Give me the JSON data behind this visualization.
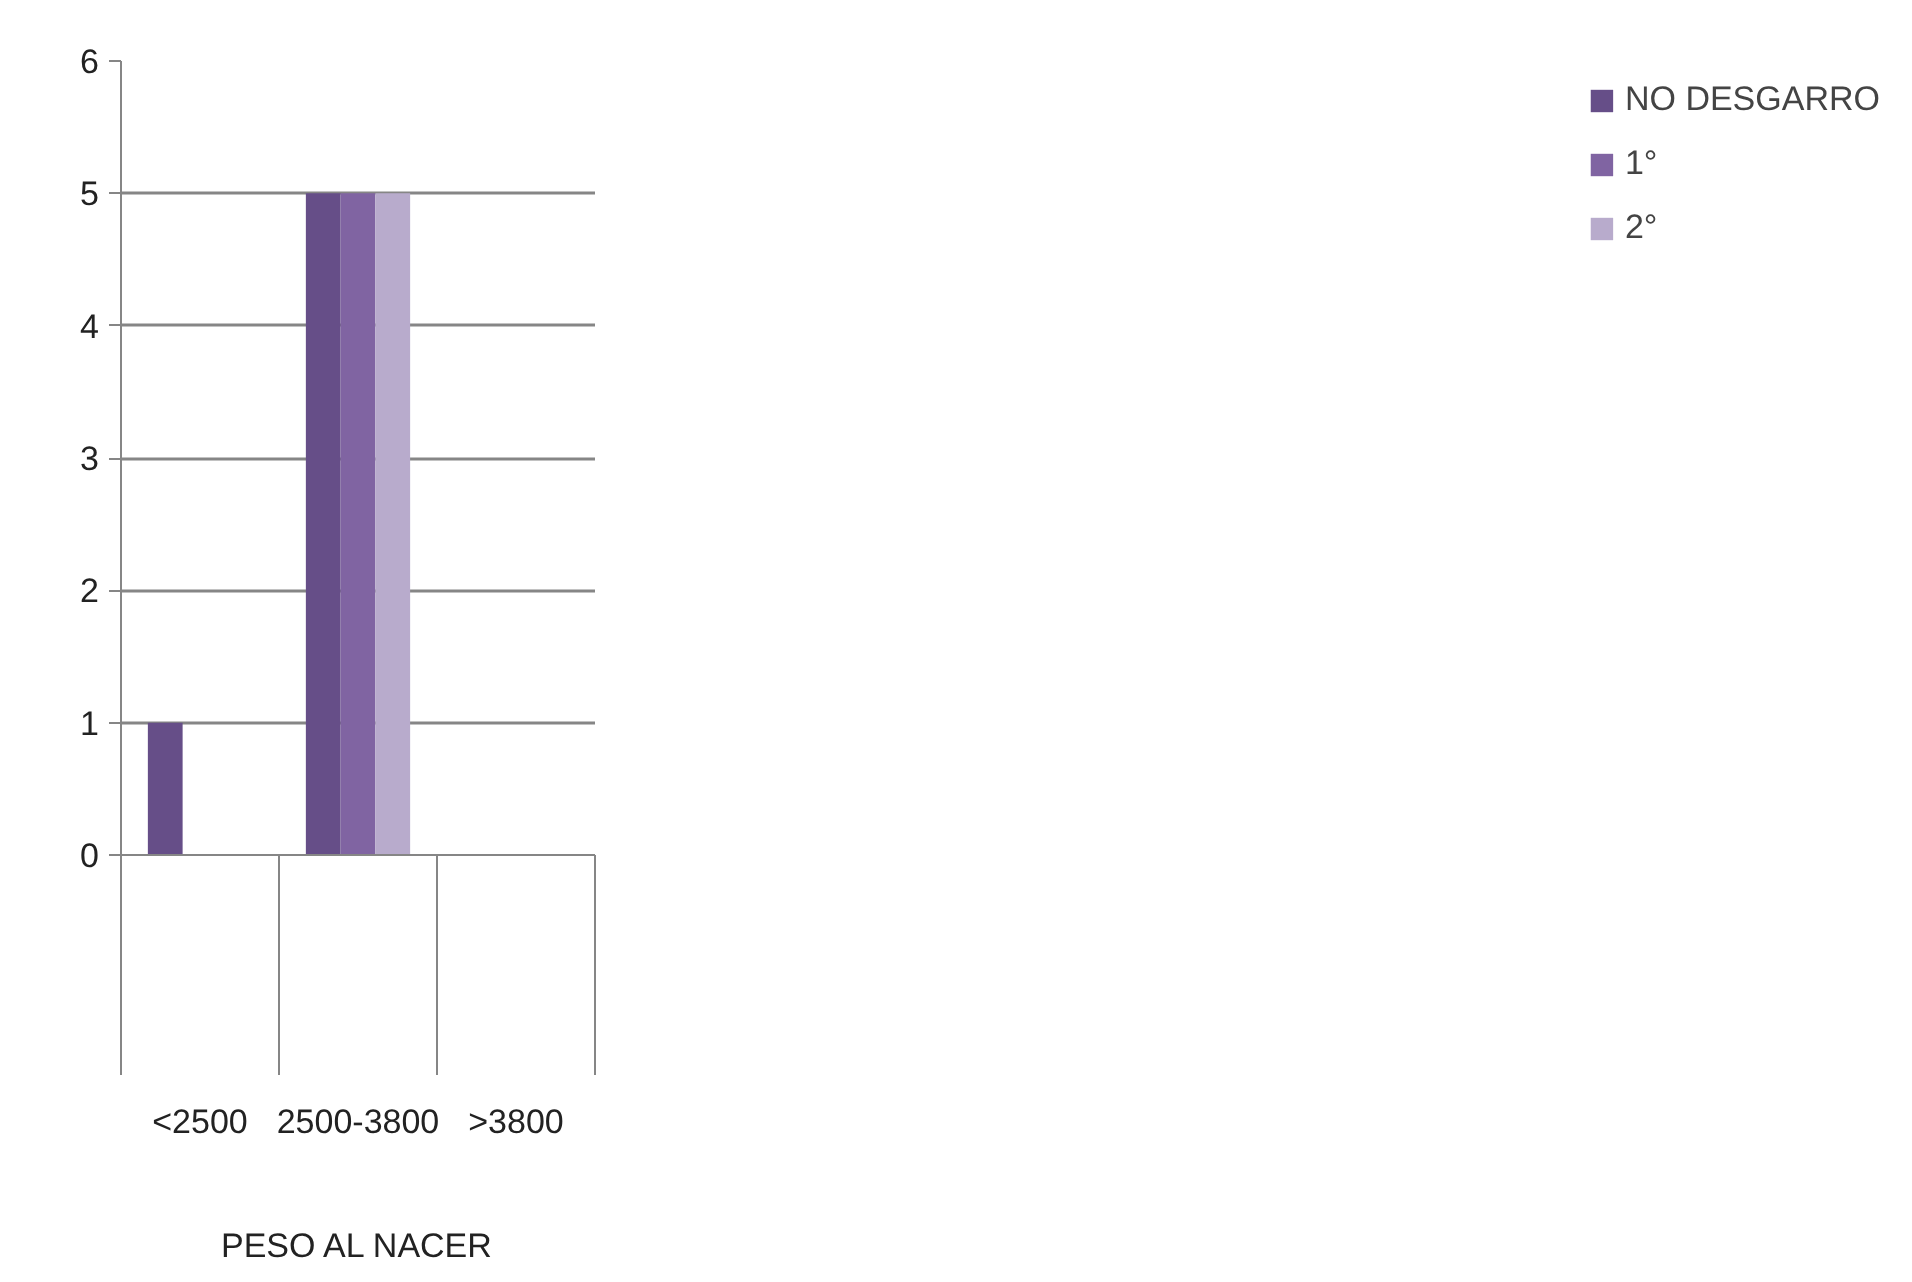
{
  "chart_data": {
    "type": "bar",
    "xlabel": "PESO AL NACER",
    "categories": [
      "<2500",
      "2500-3800",
      ">3800"
    ],
    "series": [
      {
        "name": "NO DESGARRO",
        "color": "#664e88",
        "values": [
          1,
          5,
          0
        ]
      },
      {
        "name": "1°",
        "color": "#8064a2",
        "values": [
          0,
          5,
          0
        ]
      },
      {
        "name": "2°",
        "color": "#b8abcc",
        "values": [
          0,
          5,
          0
        ]
      }
    ],
    "ylim": [
      0,
      6
    ],
    "yticks": [
      0,
      1,
      2,
      3,
      4,
      5,
      6
    ],
    "grid": "y",
    "legend": "right"
  }
}
